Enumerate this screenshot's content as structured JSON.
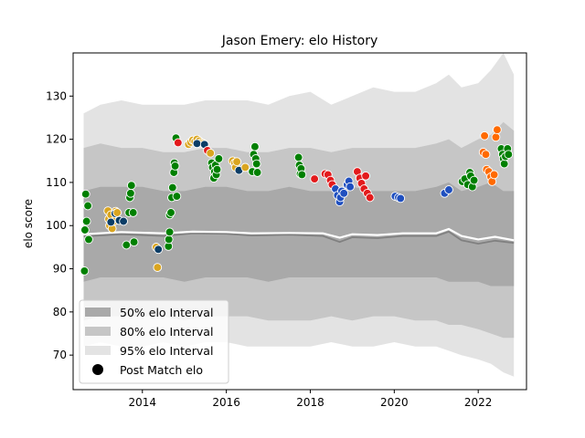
{
  "chart_data": {
    "type": "scatter",
    "title": "Jason Emery: elo History",
    "xlabel": "",
    "ylabel": "elo score",
    "xlim": [
      2012.35,
      2023.15
    ],
    "ylim": [
      62,
      140
    ],
    "xticks": [
      2014,
      2016,
      2018,
      2020,
      2022
    ],
    "yticks": [
      70,
      80,
      90,
      100,
      110,
      120,
      130
    ],
    "grid": false,
    "legend": {
      "placement": "lower-left",
      "entries": [
        "50% elo Interval",
        "80% elo Interval",
        "95% elo Interval",
        "Post Match elo"
      ]
    },
    "colors": {
      "band50": "#a9a9a9",
      "band80": "#c6c6c6",
      "band95": "#e3e3e3",
      "median": "#ffffff",
      "mean": "#808080",
      "green": "#008000",
      "gold": "#daa520",
      "blue": "#1f4fbf",
      "red": "#e31a1c",
      "orange": "#ff6a00",
      "dark": "#0b3d66"
    },
    "bands": {
      "x": [
        2012.6,
        2013.0,
        2013.5,
        2014.0,
        2014.5,
        2015.0,
        2015.5,
        2016.0,
        2016.5,
        2017.0,
        2017.5,
        2018.0,
        2018.5,
        2019.0,
        2019.5,
        2020.0,
        2020.5,
        2021.0,
        2021.3,
        2021.6,
        2022.0,
        2022.3,
        2022.6,
        2022.85
      ],
      "p95_hi": [
        126,
        128,
        129,
        128,
        128,
        128,
        129,
        129,
        129,
        128,
        130,
        131,
        128,
        130,
        132,
        131,
        131,
        133,
        135,
        132,
        133,
        136,
        140,
        135
      ],
      "p80_hi": [
        118,
        119,
        118,
        118,
        117,
        117,
        118,
        118,
        117,
        117,
        118,
        118,
        117,
        118,
        118,
        118,
        118,
        119,
        120,
        118,
        120,
        121,
        124,
        122
      ],
      "p50_hi": [
        108,
        109,
        109,
        109,
        108,
        108,
        109,
        109,
        108,
        108,
        109,
        108,
        108,
        109,
        108,
        108,
        108,
        109,
        110,
        108,
        109,
        110,
        108,
        108
      ],
      "p50_lo": [
        87,
        88,
        88,
        88,
        88,
        87,
        88,
        88,
        88,
        87,
        88,
        88,
        88,
        88,
        88,
        88,
        88,
        88,
        87,
        87,
        87,
        86,
        86,
        86
      ],
      "p80_lo": [
        78,
        79,
        79,
        79,
        79,
        78,
        79,
        79,
        79,
        78,
        78,
        78,
        79,
        78,
        79,
        79,
        78,
        78,
        77,
        77,
        76,
        75,
        74,
        74
      ],
      "p95_lo": [
        72,
        73,
        72,
        72,
        73,
        72,
        73,
        73,
        72,
        72,
        72,
        72,
        73,
        72,
        72,
        73,
        72,
        72,
        71,
        70,
        69,
        68,
        66,
        65
      ]
    },
    "median_line": {
      "x": [
        2012.6,
        2013.5,
        2014.5,
        2015.2,
        2016.0,
        2016.6,
        2017.5,
        2018.3,
        2018.7,
        2019.0,
        2019.6,
        2020.2,
        2021.0,
        2021.3,
        2021.6,
        2022.0,
        2022.4,
        2022.85
      ],
      "y": [
        98,
        98.5,
        98.2,
        98.6,
        98.5,
        98.2,
        98.3,
        98.2,
        97.2,
        98.0,
        97.8,
        98.2,
        98.2,
        99.2,
        97.6,
        96.8,
        97.4,
        96.6
      ]
    },
    "mean_line": {
      "x": [
        2012.6,
        2013.5,
        2014.5,
        2015.2,
        2016.0,
        2016.6,
        2017.5,
        2018.3,
        2018.7,
        2019.0,
        2019.6,
        2020.2,
        2021.0,
        2021.3,
        2021.6,
        2022.0,
        2022.4,
        2022.85
      ],
      "y": [
        97.5,
        98.0,
        97.6,
        98.2,
        98.1,
        97.7,
        97.9,
        97.6,
        96.2,
        97.3,
        97.1,
        97.6,
        97.6,
        98.6,
        96.6,
        95.8,
        96.5,
        96.0
      ]
    },
    "points": [
      {
        "x": 2012.62,
        "y": 89.5,
        "c": "green"
      },
      {
        "x": 2012.63,
        "y": 99.0,
        "c": "green"
      },
      {
        "x": 2012.65,
        "y": 107.3,
        "c": "green"
      },
      {
        "x": 2012.67,
        "y": 101.0,
        "c": "green"
      },
      {
        "x": 2012.7,
        "y": 104.6,
        "c": "green"
      },
      {
        "x": 2012.72,
        "y": 96.8,
        "c": "green"
      },
      {
        "x": 2013.18,
        "y": 103.4,
        "c": "gold"
      },
      {
        "x": 2013.2,
        "y": 101.5,
        "c": "gold"
      },
      {
        "x": 2013.22,
        "y": 100.0,
        "c": "gold"
      },
      {
        "x": 2013.25,
        "y": 102.5,
        "c": "gold"
      },
      {
        "x": 2013.28,
        "y": 99.3,
        "c": "gold"
      },
      {
        "x": 2013.32,
        "y": 101.0,
        "c": "gold"
      },
      {
        "x": 2013.36,
        "y": 103.3,
        "c": "gold"
      },
      {
        "x": 2013.25,
        "y": 100.8,
        "c": "dark"
      },
      {
        "x": 2013.35,
        "y": 102.8,
        "c": "dark"
      },
      {
        "x": 2013.45,
        "y": 101.2,
        "c": "dark"
      },
      {
        "x": 2013.55,
        "y": 101.0,
        "c": "dark"
      },
      {
        "x": 2013.4,
        "y": 103.0,
        "c": "gold"
      },
      {
        "x": 2013.62,
        "y": 95.5,
        "c": "green"
      },
      {
        "x": 2013.68,
        "y": 103.0,
        "c": "green"
      },
      {
        "x": 2013.7,
        "y": 106.5,
        "c": "green"
      },
      {
        "x": 2013.72,
        "y": 107.5,
        "c": "green"
      },
      {
        "x": 2013.74,
        "y": 109.3,
        "c": "green"
      },
      {
        "x": 2013.78,
        "y": 103.0,
        "c": "green"
      },
      {
        "x": 2013.8,
        "y": 96.2,
        "c": "green"
      },
      {
        "x": 2014.33,
        "y": 95.0,
        "c": "gold"
      },
      {
        "x": 2014.36,
        "y": 90.3,
        "c": "gold"
      },
      {
        "x": 2014.38,
        "y": 94.5,
        "c": "dark"
      },
      {
        "x": 2014.62,
        "y": 95.2,
        "c": "green"
      },
      {
        "x": 2014.63,
        "y": 96.8,
        "c": "green"
      },
      {
        "x": 2014.65,
        "y": 98.5,
        "c": "green"
      },
      {
        "x": 2014.65,
        "y": 102.5,
        "c": "green"
      },
      {
        "x": 2014.68,
        "y": 103.0,
        "c": "green"
      },
      {
        "x": 2014.7,
        "y": 106.5,
        "c": "green"
      },
      {
        "x": 2014.72,
        "y": 108.8,
        "c": "green"
      },
      {
        "x": 2014.75,
        "y": 112.3,
        "c": "green"
      },
      {
        "x": 2014.76,
        "y": 114.5,
        "c": "green"
      },
      {
        "x": 2014.78,
        "y": 113.8,
        "c": "green"
      },
      {
        "x": 2014.8,
        "y": 120.3,
        "c": "green"
      },
      {
        "x": 2014.82,
        "y": 106.8,
        "c": "green"
      },
      {
        "x": 2014.85,
        "y": 119.2,
        "c": "red"
      },
      {
        "x": 2015.1,
        "y": 118.8,
        "c": "gold"
      },
      {
        "x": 2015.15,
        "y": 119.3,
        "c": "gold"
      },
      {
        "x": 2015.2,
        "y": 119.8,
        "c": "gold"
      },
      {
        "x": 2015.25,
        "y": 119.5,
        "c": "gold"
      },
      {
        "x": 2015.3,
        "y": 120.0,
        "c": "gold"
      },
      {
        "x": 2015.35,
        "y": 119.6,
        "c": "gold"
      },
      {
        "x": 2015.4,
        "y": 119.2,
        "c": "gold"
      },
      {
        "x": 2015.45,
        "y": 119.0,
        "c": "gold"
      },
      {
        "x": 2015.3,
        "y": 119.0,
        "c": "dark"
      },
      {
        "x": 2015.48,
        "y": 118.8,
        "c": "dark"
      },
      {
        "x": 2015.55,
        "y": 117.4,
        "c": "red"
      },
      {
        "x": 2015.62,
        "y": 116.8,
        "c": "gold"
      },
      {
        "x": 2015.65,
        "y": 114.5,
        "c": "green"
      },
      {
        "x": 2015.67,
        "y": 113.5,
        "c": "green"
      },
      {
        "x": 2015.7,
        "y": 111.0,
        "c": "green"
      },
      {
        "x": 2015.72,
        "y": 112.5,
        "c": "green"
      },
      {
        "x": 2015.74,
        "y": 114.0,
        "c": "green"
      },
      {
        "x": 2015.76,
        "y": 111.8,
        "c": "green"
      },
      {
        "x": 2015.78,
        "y": 113.0,
        "c": "green"
      },
      {
        "x": 2015.82,
        "y": 115.5,
        "c": "green"
      },
      {
        "x": 2016.15,
        "y": 115.0,
        "c": "gold"
      },
      {
        "x": 2016.2,
        "y": 114.5,
        "c": "gold"
      },
      {
        "x": 2016.22,
        "y": 113.5,
        "c": "gold"
      },
      {
        "x": 2016.25,
        "y": 114.8,
        "c": "gold"
      },
      {
        "x": 2016.3,
        "y": 112.8,
        "c": "dark"
      },
      {
        "x": 2016.45,
        "y": 113.5,
        "c": "gold"
      },
      {
        "x": 2016.62,
        "y": 112.5,
        "c": "green"
      },
      {
        "x": 2016.65,
        "y": 116.5,
        "c": "green"
      },
      {
        "x": 2016.68,
        "y": 118.3,
        "c": "green"
      },
      {
        "x": 2016.7,
        "y": 115.5,
        "c": "green"
      },
      {
        "x": 2016.72,
        "y": 114.3,
        "c": "green"
      },
      {
        "x": 2016.74,
        "y": 112.3,
        "c": "green"
      },
      {
        "x": 2017.72,
        "y": 115.8,
        "c": "green"
      },
      {
        "x": 2017.74,
        "y": 114.0,
        "c": "green"
      },
      {
        "x": 2017.76,
        "y": 112.0,
        "c": "green"
      },
      {
        "x": 2017.78,
        "y": 113.2,
        "c": "green"
      },
      {
        "x": 2017.8,
        "y": 111.8,
        "c": "green"
      },
      {
        "x": 2018.1,
        "y": 110.8,
        "c": "red"
      },
      {
        "x": 2018.35,
        "y": 112.0,
        "c": "red"
      },
      {
        "x": 2018.42,
        "y": 111.8,
        "c": "red"
      },
      {
        "x": 2018.48,
        "y": 110.5,
        "c": "red"
      },
      {
        "x": 2018.52,
        "y": 109.5,
        "c": "red"
      },
      {
        "x": 2018.6,
        "y": 108.5,
        "c": "blue"
      },
      {
        "x": 2018.65,
        "y": 107.0,
        "c": "blue"
      },
      {
        "x": 2018.7,
        "y": 105.5,
        "c": "blue"
      },
      {
        "x": 2018.72,
        "y": 106.5,
        "c": "blue"
      },
      {
        "x": 2018.75,
        "y": 108.0,
        "c": "blue"
      },
      {
        "x": 2018.8,
        "y": 107.5,
        "c": "blue"
      },
      {
        "x": 2018.88,
        "y": 109.5,
        "c": "blue"
      },
      {
        "x": 2018.92,
        "y": 110.3,
        "c": "blue"
      },
      {
        "x": 2018.95,
        "y": 109.0,
        "c": "blue"
      },
      {
        "x": 2019.12,
        "y": 112.5,
        "c": "red"
      },
      {
        "x": 2019.18,
        "y": 111.0,
        "c": "red"
      },
      {
        "x": 2019.22,
        "y": 109.8,
        "c": "red"
      },
      {
        "x": 2019.28,
        "y": 108.5,
        "c": "red"
      },
      {
        "x": 2019.32,
        "y": 111.5,
        "c": "red"
      },
      {
        "x": 2019.36,
        "y": 107.5,
        "c": "red"
      },
      {
        "x": 2019.42,
        "y": 106.5,
        "c": "red"
      },
      {
        "x": 2020.02,
        "y": 106.8,
        "c": "blue"
      },
      {
        "x": 2020.1,
        "y": 106.5,
        "c": "blue"
      },
      {
        "x": 2020.15,
        "y": 106.3,
        "c": "blue"
      },
      {
        "x": 2021.2,
        "y": 107.5,
        "c": "blue"
      },
      {
        "x": 2021.3,
        "y": 108.3,
        "c": "blue"
      },
      {
        "x": 2021.62,
        "y": 110.2,
        "c": "green"
      },
      {
        "x": 2021.68,
        "y": 110.8,
        "c": "green"
      },
      {
        "x": 2021.75,
        "y": 109.5,
        "c": "green"
      },
      {
        "x": 2021.8,
        "y": 112.3,
        "c": "green"
      },
      {
        "x": 2021.82,
        "y": 111.5,
        "c": "green"
      },
      {
        "x": 2021.86,
        "y": 109.0,
        "c": "green"
      },
      {
        "x": 2021.9,
        "y": 110.5,
        "c": "green"
      },
      {
        "x": 2022.12,
        "y": 117.0,
        "c": "orange"
      },
      {
        "x": 2022.15,
        "y": 120.8,
        "c": "orange"
      },
      {
        "x": 2022.18,
        "y": 116.5,
        "c": "orange"
      },
      {
        "x": 2022.2,
        "y": 113.0,
        "c": "orange"
      },
      {
        "x": 2022.25,
        "y": 112.5,
        "c": "orange"
      },
      {
        "x": 2022.3,
        "y": 111.3,
        "c": "orange"
      },
      {
        "x": 2022.33,
        "y": 110.2,
        "c": "orange"
      },
      {
        "x": 2022.38,
        "y": 111.8,
        "c": "orange"
      },
      {
        "x": 2022.42,
        "y": 120.5,
        "c": "orange"
      },
      {
        "x": 2022.45,
        "y": 122.2,
        "c": "orange"
      },
      {
        "x": 2022.55,
        "y": 117.8,
        "c": "green"
      },
      {
        "x": 2022.58,
        "y": 116.5,
        "c": "green"
      },
      {
        "x": 2022.6,
        "y": 115.5,
        "c": "green"
      },
      {
        "x": 2022.62,
        "y": 114.3,
        "c": "green"
      },
      {
        "x": 2022.65,
        "y": 116.0,
        "c": "green"
      },
      {
        "x": 2022.7,
        "y": 117.8,
        "c": "green"
      },
      {
        "x": 2022.72,
        "y": 116.5,
        "c": "green"
      }
    ]
  }
}
